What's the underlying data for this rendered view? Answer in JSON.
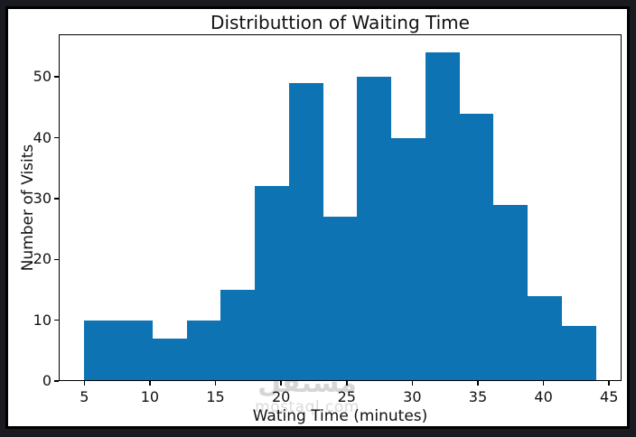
{
  "figure": {
    "background": "#ffffff",
    "surround_color": "#1a1b20",
    "frame_color": "#000000"
  },
  "chart_data": {
    "type": "bar",
    "subtype": "histogram",
    "title": "Distributtion of Waiting Time",
    "xlabel": "Wating Time (minutes)",
    "ylabel": "Number of Visits",
    "bin_edges": [
      5.0,
      7.6,
      10.2,
      12.8,
      15.4,
      18.0,
      20.6,
      23.2,
      25.8,
      28.4,
      31.0,
      33.6,
      36.2,
      38.8,
      41.4,
      44.0
    ],
    "values": [
      10,
      10,
      7,
      10,
      15,
      32,
      49,
      27,
      50,
      40,
      54,
      44,
      29,
      14,
      9
    ],
    "bar_color": "#0d73b3",
    "xticks": [
      5,
      10,
      15,
      20,
      25,
      30,
      35,
      40,
      45
    ],
    "yticks": [
      0,
      10,
      20,
      30,
      40,
      50
    ],
    "xlim": [
      3.05,
      45.95
    ],
    "ylim": [
      0,
      57
    ],
    "grid": false,
    "legend_position": "none"
  },
  "watermark": {
    "arabic_text": "مستقل",
    "domain_text": "mostaql.com",
    "color": "#bbbbbb"
  }
}
